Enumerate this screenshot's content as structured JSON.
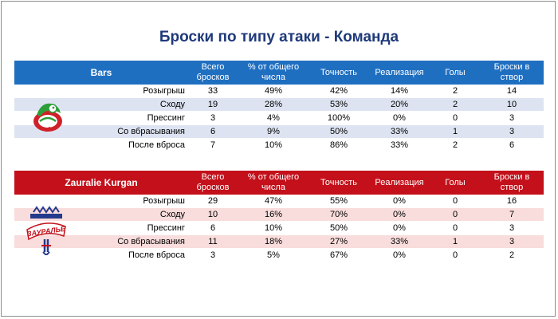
{
  "title": "Броски по типу атаки - Команда",
  "columns": [
    "Всего бросков",
    "% от общего числа",
    "Точность",
    "Реализация",
    "Голы",
    "Броски в створ"
  ],
  "column_lines": [
    [
      "Всего",
      "бросков"
    ],
    [
      "% от общего",
      "числа"
    ],
    [
      "Точность",
      ""
    ],
    [
      "Реализация",
      ""
    ],
    [
      "Голы",
      ""
    ],
    [
      "Броски в",
      "створ"
    ]
  ],
  "teams": [
    {
      "name": "Bars",
      "header_color": "#1f6fc1",
      "alt_color": "#dde3f1",
      "rows": [
        {
          "category": "Розыгрыш",
          "total": "33",
          "percent": "49%",
          "accuracy": "42%",
          "realization": "14%",
          "goals": "2",
          "on_target": "14"
        },
        {
          "category": "Сходу",
          "total": "19",
          "percent": "28%",
          "accuracy": "53%",
          "realization": "20%",
          "goals": "2",
          "on_target": "10"
        },
        {
          "category": "Прессинг",
          "total": "3",
          "percent": "4%",
          "accuracy": "100%",
          "realization": "0%",
          "goals": "0",
          "on_target": "3"
        },
        {
          "category": "Со вбрасывания",
          "total": "6",
          "percent": "9%",
          "accuracy": "50%",
          "realization": "33%",
          "goals": "1",
          "on_target": "3"
        },
        {
          "category": "После вброса",
          "total": "7",
          "percent": "10%",
          "accuracy": "86%",
          "realization": "33%",
          "goals": "2",
          "on_target": "6"
        }
      ]
    },
    {
      "name": "Zauralie Kurgan",
      "header_color": "#c3101a",
      "alt_color": "#f9dcdc",
      "rows": [
        {
          "category": "Розыгрыш",
          "total": "29",
          "percent": "47%",
          "accuracy": "55%",
          "realization": "0%",
          "goals": "0",
          "on_target": "16"
        },
        {
          "category": "Сходу",
          "total": "10",
          "percent": "16%",
          "accuracy": "70%",
          "realization": "0%",
          "goals": "0",
          "on_target": "7"
        },
        {
          "category": "Прессинг",
          "total": "6",
          "percent": "10%",
          "accuracy": "50%",
          "realization": "0%",
          "goals": "0",
          "on_target": "3"
        },
        {
          "category": "Со вбрасывания",
          "total": "11",
          "percent": "18%",
          "accuracy": "27%",
          "realization": "33%",
          "goals": "1",
          "on_target": "3"
        },
        {
          "category": "После вброса",
          "total": "3",
          "percent": "5%",
          "accuracy": "67%",
          "realization": "0%",
          "goals": "0",
          "on_target": "2"
        }
      ]
    }
  ],
  "logos": {
    "bars": {
      "icon": "bars-leopard-logo-icon",
      "colors": [
        "#2e9e3a",
        "#d0202a",
        "#ffffff"
      ]
    },
    "kurgan": {
      "icon": "zauralie-logo-icon",
      "colors": [
        "#c3101a",
        "#243a8c",
        "#ffffff"
      ],
      "text": "ЗАУРАЛЬЕ"
    }
  }
}
